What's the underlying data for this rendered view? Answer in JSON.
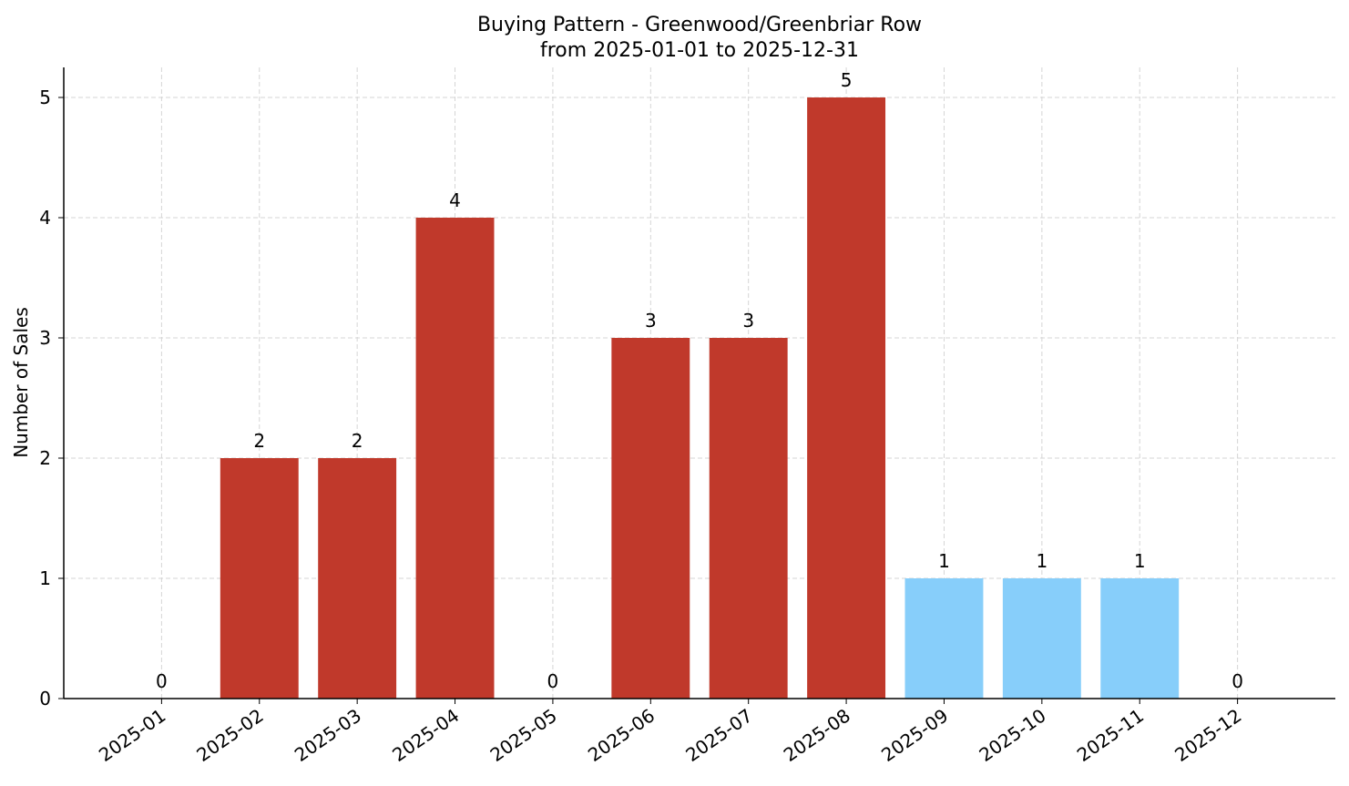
{
  "chart_data": {
    "type": "bar",
    "title": "Buying Pattern - Greenwood/Greenbriar Row",
    "subtitle": "from 2025-01-01 to 2025-12-31",
    "y_label": "Number of Sales",
    "categories": [
      "2025-01",
      "2025-02",
      "2025-03",
      "2025-04",
      "2025-05",
      "2025-06",
      "2025-07",
      "2025-08",
      "2025-09",
      "2025-10",
      "2025-11",
      "2025-12"
    ],
    "values": [
      0,
      2,
      2,
      4,
      0,
      3,
      3,
      5,
      1,
      1,
      1,
      0
    ],
    "colors": [
      "#c0392b",
      "#c0392b",
      "#c0392b",
      "#c0392b",
      "#c0392b",
      "#c0392b",
      "#c0392b",
      "#c0392b",
      "#87cefa",
      "#87cefa",
      "#87cefa",
      "#87cefa"
    ],
    "ylim": [
      0,
      5.25
    ],
    "yticks": [
      0,
      1,
      2,
      3,
      4,
      5
    ],
    "grid": true
  }
}
